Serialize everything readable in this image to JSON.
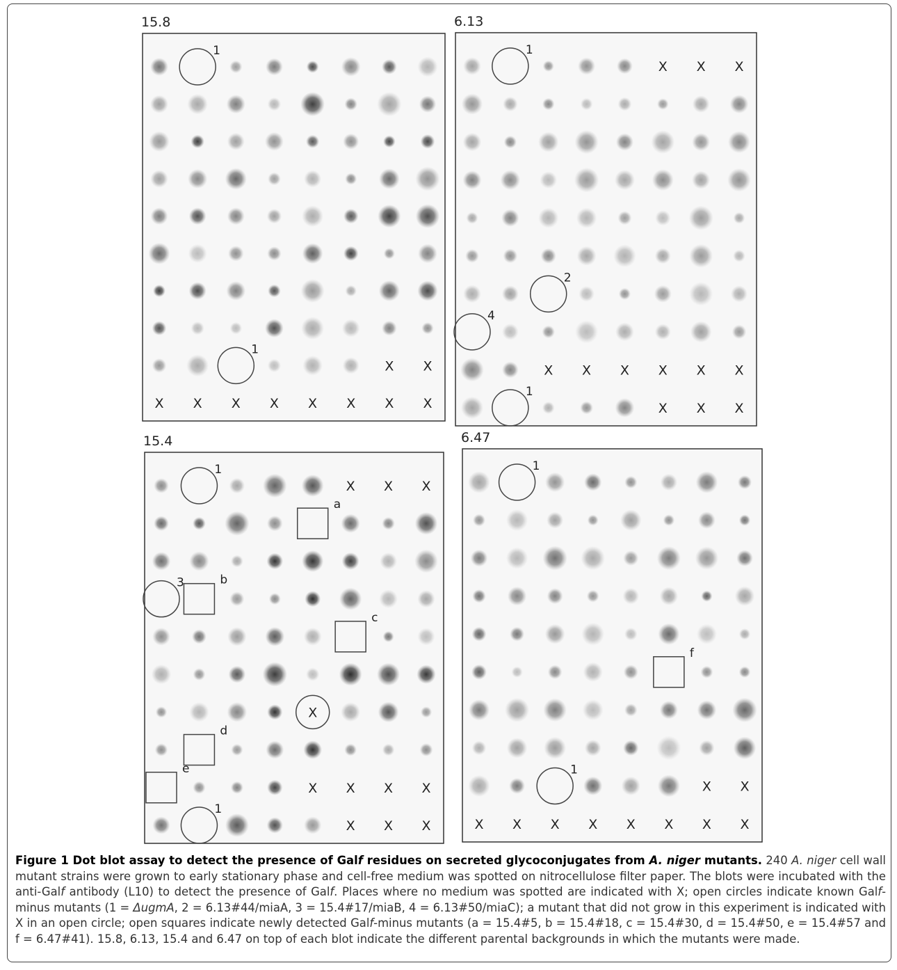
{
  "blots": [
    {
      "label": "15.8",
      "rows": [
        [
          null,
          {
            "circle": "1"
          },
          null,
          null,
          null,
          null,
          null,
          null
        ],
        [
          null,
          null,
          null,
          null,
          null,
          null,
          null,
          null
        ],
        [
          null,
          null,
          null,
          null,
          null,
          null,
          null,
          null
        ],
        [
          null,
          null,
          null,
          null,
          null,
          null,
          null,
          null
        ],
        [
          null,
          null,
          null,
          null,
          null,
          null,
          null,
          null
        ],
        [
          null,
          null,
          null,
          null,
          null,
          null,
          null,
          null
        ],
        [
          null,
          null,
          null,
          null,
          null,
          null,
          null,
          null
        ],
        [
          null,
          null,
          null,
          null,
          null,
          null,
          null,
          null
        ],
        [
          null,
          null,
          {
            "circle": "1"
          },
          null,
          null,
          null,
          "X",
          "X"
        ],
        [
          "X",
          "X",
          "X",
          "X",
          "X",
          "X",
          "X",
          "X"
        ]
      ]
    },
    {
      "label": "6.13",
      "rows": [
        [
          null,
          {
            "circle": "1"
          },
          null,
          null,
          null,
          "X",
          "X",
          "X"
        ],
        [
          null,
          null,
          null,
          null,
          null,
          null,
          null,
          null
        ],
        [
          null,
          null,
          null,
          null,
          null,
          null,
          null,
          null
        ],
        [
          null,
          null,
          null,
          null,
          null,
          null,
          null,
          null
        ],
        [
          null,
          null,
          null,
          null,
          null,
          null,
          null,
          null
        ],
        [
          null,
          null,
          null,
          null,
          null,
          null,
          null,
          null
        ],
        [
          null,
          null,
          {
            "circle": "2"
          },
          null,
          null,
          null,
          null,
          null
        ],
        [
          {
            "circle": "4"
          },
          null,
          null,
          null,
          null,
          null,
          null,
          null
        ],
        [
          null,
          null,
          "X",
          "X",
          "X",
          "X",
          "X",
          "X"
        ],
        [
          null,
          {
            "circle": "1"
          },
          null,
          null,
          null,
          "X",
          "X",
          "X"
        ]
      ]
    },
    {
      "label": "15.4",
      "rows": [
        [
          null,
          {
            "circle": "1"
          },
          null,
          null,
          null,
          "X",
          "X",
          "X"
        ],
        [
          null,
          null,
          null,
          null,
          {
            "square": "a"
          },
          null,
          null,
          null
        ],
        [
          null,
          null,
          null,
          null,
          null,
          null,
          null,
          null
        ],
        [
          {
            "circle": "3"
          },
          {
            "square": "b"
          },
          null,
          null,
          null,
          null,
          null,
          null
        ],
        [
          null,
          null,
          null,
          null,
          null,
          {
            "square": "c"
          },
          null,
          null
        ],
        [
          null,
          null,
          null,
          null,
          null,
          null,
          null,
          null
        ],
        [
          null,
          null,
          null,
          null,
          {
            "circled": "X"
          },
          null,
          null,
          null
        ],
        [
          null,
          {
            "square": "d"
          },
          null,
          null,
          null,
          null,
          null,
          null
        ],
        [
          {
            "square": "e"
          },
          null,
          null,
          null,
          "X",
          "X",
          "X",
          "X"
        ],
        [
          null,
          {
            "circle": "1"
          },
          null,
          null,
          null,
          "X",
          "X",
          "X"
        ]
      ]
    },
    {
      "label": "6.47",
      "rows": [
        [
          null,
          {
            "circle": "1"
          },
          null,
          null,
          null,
          null,
          null,
          null
        ],
        [
          null,
          null,
          null,
          null,
          null,
          null,
          null,
          null
        ],
        [
          null,
          null,
          null,
          null,
          null,
          null,
          null,
          null
        ],
        [
          null,
          null,
          null,
          null,
          null,
          null,
          null,
          null
        ],
        [
          null,
          null,
          null,
          null,
          null,
          null,
          null,
          null
        ],
        [
          null,
          null,
          null,
          null,
          null,
          {
            "square": "f"
          },
          null,
          null
        ],
        [
          null,
          null,
          null,
          null,
          null,
          null,
          null,
          null
        ],
        [
          null,
          null,
          null,
          null,
          null,
          null,
          null,
          null
        ],
        [
          null,
          null,
          {
            "circle": "1"
          },
          null,
          null,
          null,
          "X",
          "X"
        ],
        [
          "X",
          "X",
          "X",
          "X",
          "X",
          "X",
          "X",
          "X"
        ]
      ]
    }
  ],
  "caption": [
    {
      "text": "Figure 1 Dot blot assay to detect the presence of Gal",
      "bold": true
    },
    {
      "text": "f",
      "bold": true,
      "italic": true
    },
    {
      "text": " residues on secreted glycoconjugates from ",
      "bold": true
    },
    {
      "text": "A. niger",
      "bold": true,
      "italic": true
    },
    {
      "text": " mutants.",
      "bold": true
    },
    {
      "text": " 240 "
    },
    {
      "text": "A. niger",
      "italic": true
    },
    {
      "text": " cell wall mutant strains were grown to early stationary phase and cell-free medium was spotted on nitrocellulose filter paper. The blots were incubated with the anti-Gal"
    },
    {
      "text": "f",
      "italic": true
    },
    {
      "text": " antibody (L10) to detect the presence of Gal"
    },
    {
      "text": "f",
      "italic": true
    },
    {
      "text": ". Places where no medium was spotted are indicated with X; open circles indicate known Gal"
    },
    {
      "text": "f",
      "italic": true
    },
    {
      "text": "-minus mutants (1 = "
    },
    {
      "text": "ΔugmA",
      "italic": true
    },
    {
      "text": ", 2 = 6.13#44/miaA, 3 = 15.4#17/miaB, 4 = 6.13#50/miaC); a mutant that did not grow in this experiment is indicated with X in an open circle; open squares indicate newly detected Gal"
    },
    {
      "text": "f",
      "italic": true
    },
    {
      "text": "-minus mutants (a = 15.4#5, b = 15.4#18, c = 15.4#30, d = 15.4#50, e = 15.4#57 and f = 6.47#41). 15.8, 6.13, 15.4 and 6.47 on top of each blot indicate the different parental backgrounds in which the mutants were made."
    }
  ]
}
